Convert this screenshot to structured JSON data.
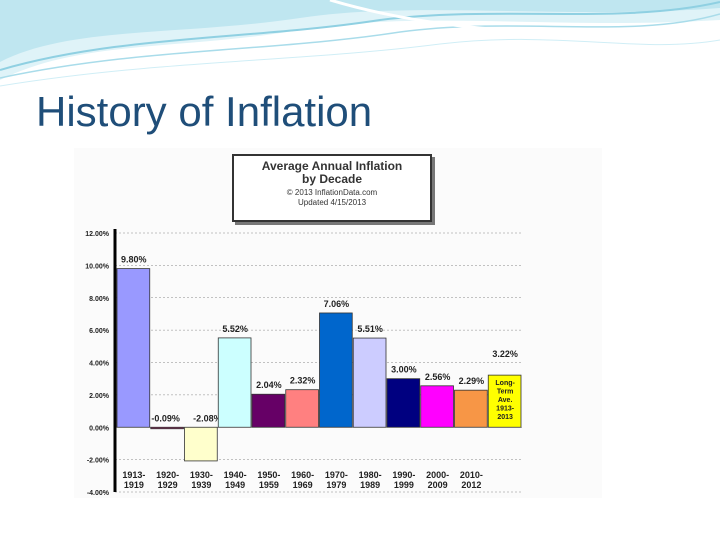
{
  "slide": {
    "title": "History of Inflation"
  },
  "chart_data": {
    "type": "bar",
    "title": "Average Annual Inflation",
    "subtitle": "by Decade",
    "credit": "© 2013 InflationData.com",
    "updated": "Updated 4/15/2013",
    "categories": [
      [
        "1913-",
        "1919"
      ],
      [
        "1920-",
        "1929"
      ],
      [
        "1930-",
        "1939"
      ],
      [
        "1940-",
        "1949"
      ],
      [
        "1950-",
        "1959"
      ],
      [
        "1960-",
        "1969"
      ],
      [
        "1970-",
        "1979"
      ],
      [
        "1980-",
        "1989"
      ],
      [
        "1990-",
        "1999"
      ],
      [
        "2000-",
        "2009"
      ],
      [
        "2010-",
        "2012"
      ],
      [
        "Long-",
        "Term",
        "Ave.",
        "1913-",
        "2013"
      ]
    ],
    "values": [
      9.8,
      -0.09,
      -2.08,
      5.52,
      2.04,
      2.32,
      7.06,
      5.51,
      3.0,
      2.56,
      2.29,
      3.22
    ],
    "data_labels": [
      "9.80%",
      "-0.09%",
      "-2.08%",
      "5.52%",
      "2.04%",
      "2.32%",
      "7.06%",
      "5.51%",
      "3.00%",
      "2.56%",
      "2.29%",
      "3.22%"
    ],
    "colors": [
      "#9999ff",
      "#993366",
      "#ffffcc",
      "#ccffff",
      "#660066",
      "#ff8080",
      "#0066cc",
      "#ccccff",
      "#000080",
      "#ff00ff",
      "#f79646",
      "#ffff00"
    ],
    "yticks": [
      "-4.00%",
      "-2.00%",
      "0.00%",
      "2.00%",
      "4.00%",
      "6.00%",
      "8.00%",
      "10.00%",
      "12.00%"
    ],
    "ylim": [
      -4,
      12
    ],
    "grid": true,
    "legend": "none"
  }
}
